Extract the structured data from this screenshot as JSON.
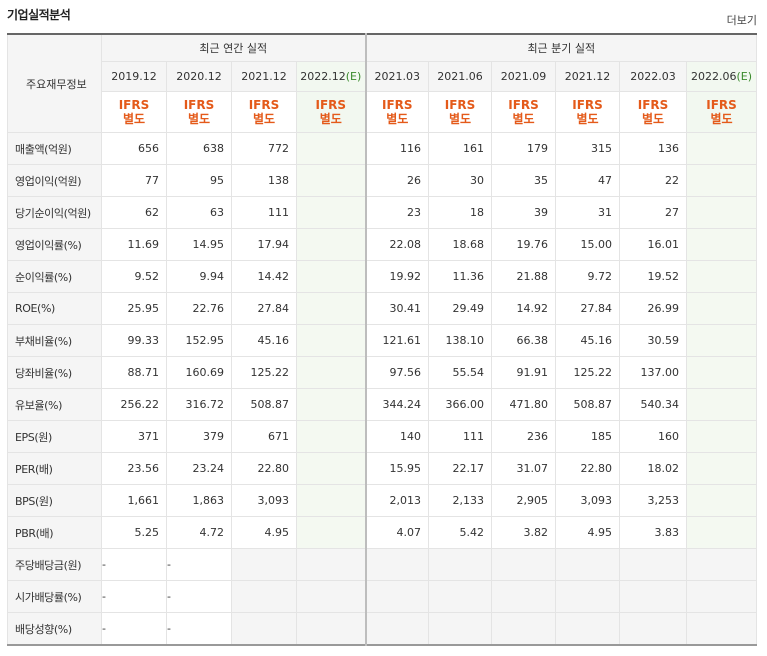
{
  "header": {
    "title": "기업실적분석",
    "more": "더보기"
  },
  "table": {
    "corner": "주요재무정보",
    "groups": {
      "annual": "최근 연간 실적",
      "quarter": "최근 분기 실적"
    },
    "columns": [
      "2019.12",
      "2020.12",
      "2021.12",
      "2022.12",
      "2021.03",
      "2021.06",
      "2021.09",
      "2021.12",
      "2022.03",
      "2022.06"
    ],
    "est_mark": "(E)",
    "ifrs_top": "IFRS",
    "ifrs_bottom": "별도",
    "rows": [
      {
        "label": "매출액(억원)",
        "values": [
          "656",
          "638",
          "772",
          "",
          "116",
          "161",
          "179",
          "315",
          "136",
          ""
        ]
      },
      {
        "label": "영업이익(억원)",
        "values": [
          "77",
          "95",
          "138",
          "",
          "26",
          "30",
          "35",
          "47",
          "22",
          ""
        ]
      },
      {
        "label": "당기순이익(억원)",
        "values": [
          "62",
          "63",
          "111",
          "",
          "23",
          "18",
          "39",
          "31",
          "27",
          ""
        ]
      },
      {
        "label": "영업이익률(%)",
        "values": [
          "11.69",
          "14.95",
          "17.94",
          "",
          "22.08",
          "18.68",
          "19.76",
          "15.00",
          "16.01",
          ""
        ]
      },
      {
        "label": "순이익률(%)",
        "values": [
          "9.52",
          "9.94",
          "14.42",
          "",
          "19.92",
          "11.36",
          "21.88",
          "9.72",
          "19.52",
          ""
        ]
      },
      {
        "label": "ROE(%)",
        "values": [
          "25.95",
          "22.76",
          "27.84",
          "",
          "30.41",
          "29.49",
          "14.92",
          "27.84",
          "26.99",
          ""
        ]
      },
      {
        "label": "부채비율(%)",
        "values": [
          "99.33",
          "152.95",
          "45.16",
          "",
          "121.61",
          "138.10",
          "66.38",
          "45.16",
          "30.59",
          ""
        ]
      },
      {
        "label": "당좌비율(%)",
        "values": [
          "88.71",
          "160.69",
          "125.22",
          "",
          "97.56",
          "55.54",
          "91.91",
          "125.22",
          "137.00",
          ""
        ]
      },
      {
        "label": "유보율(%)",
        "values": [
          "256.22",
          "316.72",
          "508.87",
          "",
          "344.24",
          "366.00",
          "471.80",
          "508.87",
          "540.34",
          ""
        ]
      },
      {
        "label": "EPS(원)",
        "values": [
          "371",
          "379",
          "671",
          "",
          "140",
          "111",
          "236",
          "185",
          "160",
          ""
        ]
      },
      {
        "label": "PER(배)",
        "values": [
          "23.56",
          "23.24",
          "22.80",
          "",
          "15.95",
          "22.17",
          "31.07",
          "22.80",
          "18.02",
          ""
        ]
      },
      {
        "label": "BPS(원)",
        "values": [
          "1,661",
          "1,863",
          "3,093",
          "",
          "2,013",
          "2,133",
          "2,905",
          "3,093",
          "3,253",
          ""
        ]
      },
      {
        "label": "PBR(배)",
        "values": [
          "5.25",
          "4.72",
          "4.95",
          "",
          "4.07",
          "5.42",
          "3.82",
          "4.95",
          "3.83",
          ""
        ]
      },
      {
        "label": "주당배당금(원)",
        "values": [
          "-",
          "-"
        ]
      },
      {
        "label": "시가배당률(%)",
        "values": [
          "-",
          "-"
        ]
      },
      {
        "label": "배당성향(%)",
        "values": [
          "-",
          "-"
        ]
      }
    ]
  }
}
